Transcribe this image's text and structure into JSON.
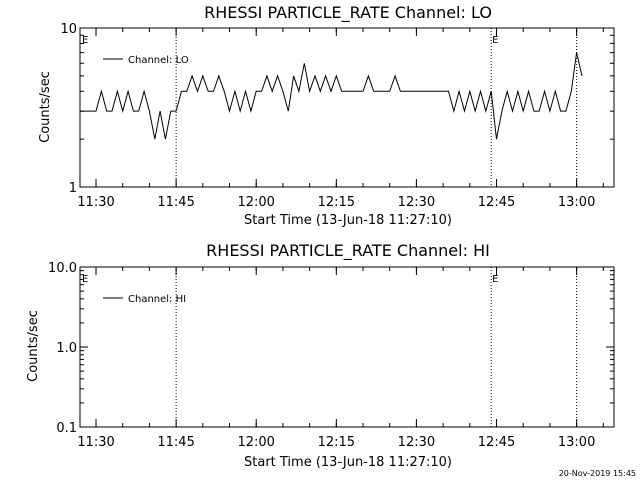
{
  "chart_data": [
    {
      "type": "line",
      "title": "RHESSI PARTICLE_RATE Channel: LO",
      "xlabel": "Start Time (13-Jun-18 11:27:10)",
      "ylabel": "Counts/sec",
      "yscale": "log",
      "ylim": [
        1,
        10
      ],
      "y_ticks": [
        "1",
        "10"
      ],
      "x_ticks": [
        "11:30",
        "11:45",
        "12:00",
        "12:15",
        "12:30",
        "12:45",
        "13:00"
      ],
      "legend": {
        "placement": "top-left",
        "entries": [
          "Channel: LO"
        ]
      },
      "event_markers": [
        {
          "label": "E",
          "time": "11:27"
        },
        {
          "label": "",
          "time": "11:45"
        },
        {
          "label": "E",
          "time": "12:44"
        },
        {
          "label": "",
          "time": "13:00"
        }
      ],
      "series": [
        {
          "name": "Channel: LO",
          "x": [
            "11:27",
            "11:30",
            "11:31",
            "11:32",
            "11:33",
            "11:34",
            "11:35",
            "11:36",
            "11:37",
            "11:38",
            "11:39",
            "11:40",
            "11:41",
            "11:42",
            "11:43",
            "11:44",
            "11:45",
            "11:46",
            "11:47",
            "11:48",
            "11:49",
            "11:50",
            "11:51",
            "11:52",
            "11:53",
            "11:54",
            "11:55",
            "11:56",
            "11:57",
            "11:58",
            "11:59",
            "12:00",
            "12:01",
            "12:02",
            "12:03",
            "12:04",
            "12:05",
            "12:06",
            "12:07",
            "12:08",
            "12:09",
            "12:10",
            "12:11",
            "12:12",
            "12:13",
            "12:14",
            "12:15",
            "12:16",
            "12:17",
            "12:18",
            "12:19",
            "12:20",
            "12:21",
            "12:22",
            "12:23",
            "12:24",
            "12:25",
            "12:26",
            "12:27",
            "12:28",
            "12:29",
            "12:30",
            "12:31",
            "12:32",
            "12:33",
            "12:34",
            "12:35",
            "12:36",
            "12:37",
            "12:38",
            "12:39",
            "12:40",
            "12:41",
            "12:42",
            "12:43",
            "12:44",
            "12:45",
            "12:46",
            "12:47",
            "12:48",
            "12:49",
            "12:50",
            "12:51",
            "12:52",
            "12:53",
            "12:54",
            "12:55",
            "12:56",
            "12:57",
            "12:58",
            "12:59",
            "13:00",
            "13:01"
          ],
          "y": [
            3,
            3,
            4,
            3,
            3,
            4,
            3,
            4,
            3,
            3,
            4,
            3,
            2,
            3,
            2,
            3,
            3,
            4,
            4,
            5,
            4,
            5,
            4,
            4,
            5,
            4,
            3,
            4,
            3,
            4,
            3,
            4,
            4,
            5,
            4,
            5,
            4,
            3,
            5,
            4,
            6,
            4,
            5,
            4,
            5,
            4,
            5,
            4,
            4,
            4,
            4,
            4,
            5,
            4,
            4,
            4,
            4,
            5,
            4,
            4,
            4,
            4,
            4,
            4,
            4,
            4,
            4,
            4,
            3,
            4,
            3,
            4,
            3,
            4,
            3,
            4,
            2,
            3,
            4,
            3,
            4,
            3,
            4,
            3,
            3,
            4,
            3,
            4,
            3,
            3,
            4,
            7,
            5
          ]
        }
      ]
    },
    {
      "type": "line",
      "title": "RHESSI PARTICLE_RATE Channel: HI",
      "xlabel": "Start Time (13-Jun-18 11:27:10)",
      "ylabel": "Counts/sec",
      "yscale": "log",
      "ylim": [
        0.1,
        10
      ],
      "y_ticks": [
        "0.1",
        "1.0",
        "10.0"
      ],
      "x_ticks": [
        "11:30",
        "11:45",
        "12:00",
        "12:15",
        "12:30",
        "12:45",
        "13:00"
      ],
      "legend": {
        "placement": "top-left",
        "entries": [
          "Channel: HI"
        ]
      },
      "event_markers": [
        {
          "label": "E",
          "time": "11:27"
        },
        {
          "label": "",
          "time": "11:45"
        },
        {
          "label": "E",
          "time": "12:44"
        },
        {
          "label": "",
          "time": "13:00"
        }
      ],
      "series": [
        {
          "name": "Channel: HI",
          "x": [],
          "y": []
        }
      ]
    }
  ],
  "footer": {
    "stamp": "20-Nov-2019 15:45"
  }
}
